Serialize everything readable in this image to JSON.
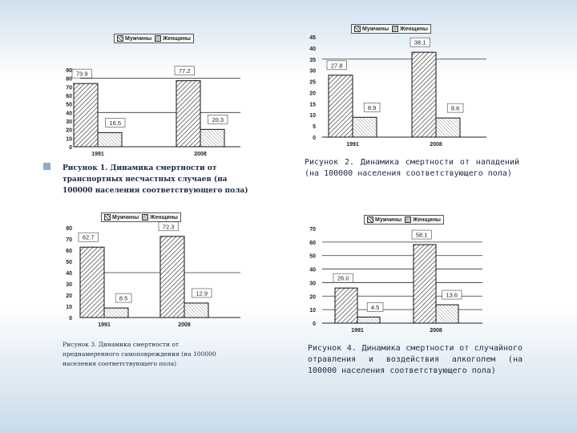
{
  "legend": {
    "men": "Мужчины",
    "women": "Женщины"
  },
  "captions": {
    "fig1": "Рисунок 1. Динамика смертности от транспортных несчастных случаев (на 100000 населения соответствующего пола)",
    "fig2": "Рисунок 2. Динамика смертности от нападений (на 100000 населения соответствующего пола)",
    "fig3": "Рисунок 3. Динамика смертности от преднамеренного самоповреждения (на 100000 населения соответствующего пола)",
    "fig4": "Рисунок 4. Динамика смертности от случайного отравления и воздействия алкоголем (на 100000 населения соответствующего пола)"
  },
  "colors": {
    "men_pattern": "#555555",
    "women_pattern": "#888888",
    "caption_text": "#1a2a44"
  },
  "chart_data": [
    {
      "type": "bar",
      "categories": [
        "1991",
        "2008"
      ],
      "series": [
        {
          "name": "Мужчины",
          "values": [
            73.9,
            77.2
          ],
          "labels": [
            "73.9",
            "77.2"
          ]
        },
        {
          "name": "Женщины",
          "values": [
            16.5,
            20.3
          ],
          "labels": [
            "16,5",
            "20,3"
          ]
        }
      ],
      "yticks": [
        "0",
        "10",
        "20",
        "30",
        "40",
        "50",
        "60",
        "70",
        "80",
        "90"
      ],
      "ylim": [
        0,
        90
      ]
    },
    {
      "type": "bar",
      "categories": [
        "1991",
        "2008"
      ],
      "series": [
        {
          "name": "Мужчины",
          "values": [
            27.8,
            38.1
          ],
          "labels": [
            "27.8",
            "38.1"
          ]
        },
        {
          "name": "Женщины",
          "values": [
            8.9,
            8.6
          ],
          "labels": [
            "8.9",
            "8.6"
          ]
        }
      ],
      "yticks": [
        "0",
        "5",
        "10",
        "15",
        "20",
        "25",
        "30",
        "35",
        "40",
        "45"
      ],
      "ylim": [
        0,
        45
      ]
    },
    {
      "type": "bar",
      "categories": [
        "1991",
        "2008"
      ],
      "series": [
        {
          "name": "Мужчины",
          "values": [
            62.7,
            72.3
          ],
          "labels": [
            "62.7",
            "72.3"
          ]
        },
        {
          "name": "Женщины",
          "values": [
            8.5,
            12.9
          ],
          "labels": [
            "8.5",
            "12.9"
          ]
        }
      ],
      "yticks": [
        "0",
        "10",
        "20",
        "30",
        "40",
        "50",
        "60",
        "70",
        "80"
      ],
      "ylim": [
        0,
        80
      ]
    },
    {
      "type": "bar",
      "categories": [
        "1991",
        "2008"
      ],
      "series": [
        {
          "name": "Мужчины",
          "values": [
            26.0,
            58.1
          ],
          "labels": [
            "26.0",
            "58.1"
          ]
        },
        {
          "name": "Женщины",
          "values": [
            4.5,
            13.6
          ],
          "labels": [
            "4.5",
            "13.6"
          ]
        }
      ],
      "yticks": [
        "0",
        "10",
        "20",
        "30",
        "40",
        "50",
        "60",
        "70"
      ],
      "ylim": [
        0,
        70
      ]
    }
  ]
}
